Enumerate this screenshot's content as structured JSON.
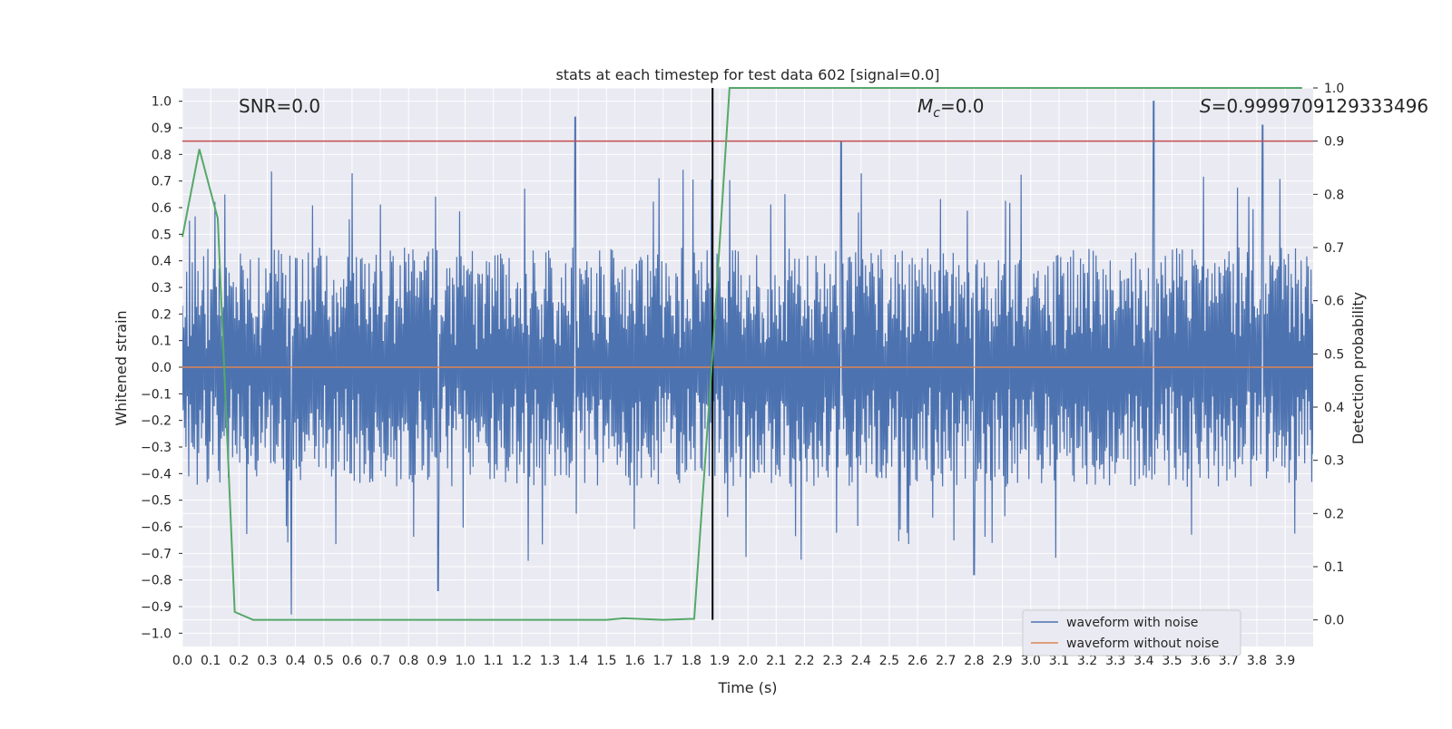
{
  "chart_data": {
    "type": "line",
    "title": "stats at each timestep for test data 602 [signal=0.0]",
    "xlabel": "Time (s)",
    "ylabel_left": "Whitened strain",
    "ylabel_right": "Detection probability",
    "xlim": [
      0.0,
      3.999
    ],
    "ylim_left": [
      -1.05,
      1.05
    ],
    "ylim_right": [
      -0.05,
      1.0
    ],
    "x_ticks": [
      "0.0",
      "0.1",
      "0.2",
      "0.3",
      "0.4",
      "0.5",
      "0.6",
      "0.7",
      "0.8",
      "0.9",
      "1.0",
      "1.1",
      "1.2",
      "1.3",
      "1.4",
      "1.5",
      "1.6",
      "1.7",
      "1.8",
      "1.9",
      "2.0",
      "2.1",
      "2.2",
      "2.3",
      "2.4",
      "2.5",
      "2.6",
      "2.7",
      "2.8",
      "2.9",
      "3.0",
      "3.1",
      "3.2",
      "3.3",
      "3.4",
      "3.5",
      "3.6",
      "3.7",
      "3.8",
      "3.9"
    ],
    "y_ticks_left": [
      "1.0",
      "0.9",
      "0.8",
      "0.7",
      "0.6",
      "0.5",
      "0.4",
      "0.3",
      "0.2",
      "0.1",
      "0.0",
      "−0.1",
      "−0.2",
      "−0.3",
      "−0.4",
      "−0.5",
      "−0.6",
      "−0.7",
      "−0.8",
      "−0.9",
      "−1.0"
    ],
    "y_ticks_right": [
      "1.0",
      "0.9",
      "0.8",
      "0.7",
      "0.6",
      "0.5",
      "0.4",
      "0.3",
      "0.2",
      "0.1",
      "0.0"
    ],
    "grid": true,
    "legend_placement": "lower-right",
    "annotations": {
      "snr": "SNR=0.0",
      "mc_symbol": "M",
      "mc_sub": "c",
      "mc_value": "=0.0",
      "s_symbol": "S",
      "s_value": "=0.9999709129333496"
    },
    "vertical_marker_x": 1.875,
    "threshold_right": 0.9,
    "series": [
      {
        "name": "waveform with noise",
        "axis": "left",
        "color": "#4c72b0",
        "noise": {
          "range": [
            -0.93,
            1.0
          ],
          "typical_abs": 0.45
        },
        "peaks": [
          {
            "x": 1.39,
            "y": 0.94
          },
          {
            "x": 2.33,
            "y": 0.85
          },
          {
            "x": 3.435,
            "y": 1.0
          },
          {
            "x": 3.82,
            "y": 0.91
          },
          {
            "x": 0.385,
            "y": -0.93
          },
          {
            "x": 0.905,
            "y": -0.84
          },
          {
            "x": 2.8,
            "y": -0.78
          }
        ]
      },
      {
        "name": "waveform without noise",
        "axis": "left",
        "color": "#dd8452",
        "y_constant": 0.0
      },
      {
        "axis": "right",
        "color": "#55a868",
        "x": [
          0.0,
          0.06,
          0.125,
          0.185,
          0.25,
          0.4,
          0.8,
          1.2,
          1.5,
          1.56,
          1.7,
          1.81,
          1.875,
          1.935,
          3.96
        ],
        "y": [
          0.72,
          0.885,
          0.755,
          0.015,
          0.0,
          0.0,
          0.0,
          0.0,
          0.0,
          0.003,
          0.0,
          0.002,
          0.5,
          1.0,
          1.0
        ]
      }
    ],
    "colors": {
      "plot_background": "#eaeaf2",
      "grid": "#ffffff",
      "threshold_line": "#c44e52",
      "vertical_marker": "#000000"
    }
  }
}
